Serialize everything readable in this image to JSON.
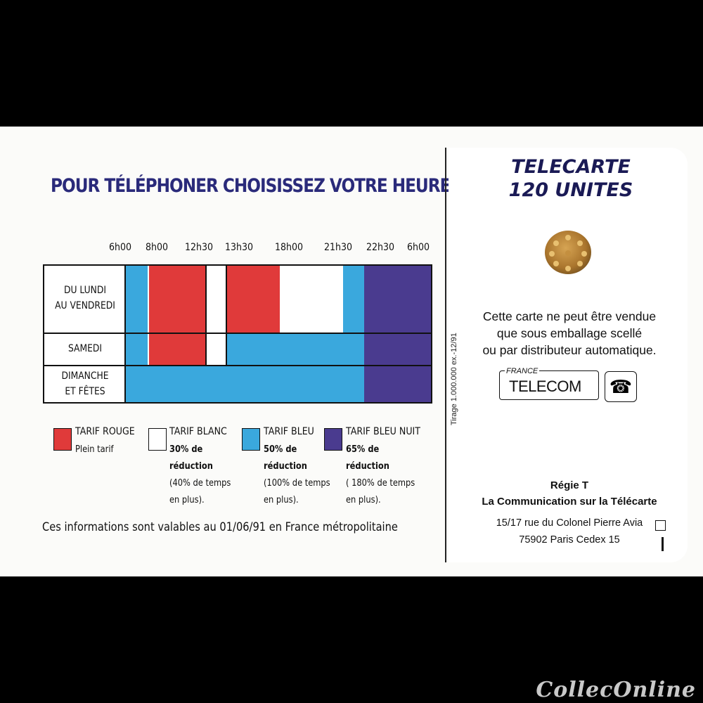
{
  "headline": "POUR TÉLÉPHONER CHOISISSEZ VOTRE HEURE.",
  "times": [
    "6h00",
    "8h00",
    "12h30",
    "13h30",
    "18h00",
    "21h30",
    "22h30",
    "6h00"
  ],
  "rows": [
    {
      "label_line1": "DU LUNDI",
      "label_line2": "AU VENDREDI"
    },
    {
      "label_line1": "SAMEDI",
      "label_line2": ""
    },
    {
      "label_line1": "DIMANCHE",
      "label_line2": "ET FÊTES"
    }
  ],
  "colors": {
    "rouge": "#e03a3a",
    "blanc": "#ffffff",
    "bleu": "#3aa8dd",
    "bleu_nuit": "#4a3b8f"
  },
  "legend": [
    {
      "title": "TARIF ROUGE",
      "line1": "Plein tarif",
      "line2": "",
      "line3": "",
      "line4": ""
    },
    {
      "title": "TARIF BLANC",
      "line1": "30% de",
      "line2": "réduction",
      "line3": "(40% de temps",
      "line4": "en plus)."
    },
    {
      "title": "TARIF BLEU",
      "line1": "50% de",
      "line2": "réduction",
      "line3": "(100% de temps",
      "line4": "en plus)."
    },
    {
      "title": "TARIF BLEU NUIT",
      "line1": "65% de",
      "line2": "réduction",
      "line3": "( 180% de temps",
      "line4": "en plus)."
    }
  ],
  "footer_note": "Ces informations sont valables au 01/06/91 en France métropolitaine",
  "card_title_line1": "TELECARTE",
  "card_title_line2": "120 UNITES",
  "warning_line1": "Cette carte ne peut être vendue",
  "warning_line2": "que sous emballage scellé",
  "warning_line3": "ou par distributeur automatique.",
  "tirage": "Tirage 1.000.000 ex.-12/91",
  "logo_small": "FRANCE",
  "logo_big": "TELECOM",
  "regie": "Régie T",
  "tagline": "La Communication sur la Télécarte",
  "address_line1": "15/17 rue du Colonel Pierre Avia",
  "address_line2": "75902 Paris Cedex 15",
  "watermark": "CollecOnline"
}
